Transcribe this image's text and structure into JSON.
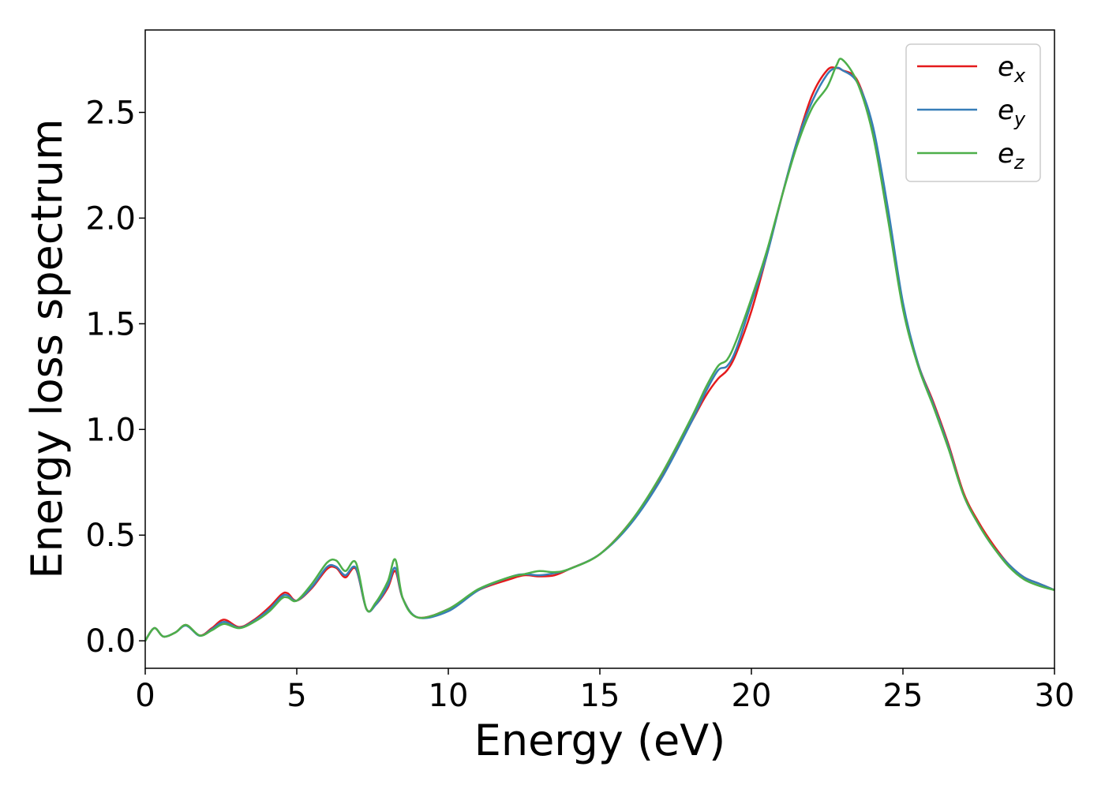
{
  "chart_data": {
    "type": "line",
    "title": "",
    "xlabel": "Energy (eV)",
    "ylabel": "Energy loss spectrum",
    "xlim": [
      0,
      30
    ],
    "ylim": [
      -0.13,
      2.89
    ],
    "xticks": [
      0,
      5,
      10,
      15,
      20,
      25,
      30
    ],
    "xtick_labels": [
      "0",
      "5",
      "10",
      "15",
      "20",
      "25",
      "30"
    ],
    "yticks": [
      0.0,
      0.5,
      1.0,
      1.5,
      2.0,
      2.5
    ],
    "ytick_labels": [
      "0.0",
      "0.5",
      "1.0",
      "1.5",
      "2.0",
      "2.5"
    ],
    "grid": false,
    "legend_position": "top-right",
    "series": [
      {
        "name": "e_x",
        "legend_base": "e",
        "legend_sub": "x",
        "color": "#e41a1c",
        "x": [
          0,
          0.3,
          0.6,
          1.0,
          1.35,
          1.8,
          2.2,
          2.6,
          3.1,
          3.6,
          4.1,
          4.5,
          4.7,
          5.0,
          5.5,
          6.0,
          6.3,
          6.6,
          6.95,
          7.3,
          7.6,
          8.0,
          8.25,
          8.5,
          9.0,
          10.0,
          11.0,
          12.0,
          12.5,
          13.0,
          13.5,
          14.0,
          15.0,
          16.0,
          17.0,
          18.0,
          18.5,
          18.9,
          19.2,
          19.5,
          20.0,
          20.5,
          21.0,
          21.5,
          22.0,
          22.5,
          22.8,
          23.0,
          23.5,
          24.0,
          24.5,
          25.0,
          25.5,
          26.0,
          26.5,
          27.0,
          27.5,
          28.0,
          28.5,
          29.0,
          29.5,
          30.0
        ],
        "values": [
          0.0,
          0.06,
          0.02,
          0.04,
          0.075,
          0.025,
          0.06,
          0.1,
          0.065,
          0.1,
          0.16,
          0.22,
          0.225,
          0.19,
          0.25,
          0.34,
          0.345,
          0.3,
          0.34,
          0.15,
          0.17,
          0.25,
          0.33,
          0.2,
          0.11,
          0.15,
          0.24,
          0.29,
          0.31,
          0.305,
          0.31,
          0.34,
          0.41,
          0.56,
          0.77,
          1.03,
          1.16,
          1.24,
          1.28,
          1.36,
          1.56,
          1.82,
          2.1,
          2.36,
          2.58,
          2.7,
          2.71,
          2.7,
          2.65,
          2.42,
          2.02,
          1.59,
          1.31,
          1.13,
          0.93,
          0.7,
          0.56,
          0.45,
          0.36,
          0.3,
          0.27,
          0.24
        ]
      },
      {
        "name": "e_y",
        "legend_base": "e",
        "legend_sub": "y",
        "color": "#377eb8",
        "x": [
          0,
          0.3,
          0.6,
          1.0,
          1.35,
          1.8,
          2.2,
          2.6,
          3.1,
          3.6,
          4.1,
          4.5,
          4.7,
          5.0,
          5.5,
          6.0,
          6.3,
          6.6,
          6.95,
          7.3,
          7.6,
          8.0,
          8.25,
          8.5,
          9.0,
          10.0,
          11.0,
          12.0,
          12.5,
          13.0,
          13.5,
          14.0,
          15.0,
          16.0,
          17.0,
          18.0,
          18.5,
          18.9,
          19.2,
          19.5,
          20.0,
          20.5,
          21.0,
          21.5,
          22.0,
          22.5,
          22.8,
          23.0,
          23.5,
          24.0,
          24.5,
          25.0,
          25.5,
          26.0,
          26.5,
          27.0,
          27.5,
          28.0,
          28.5,
          29.0,
          29.5,
          30.0
        ],
        "values": [
          0.0,
          0.06,
          0.02,
          0.04,
          0.072,
          0.024,
          0.055,
          0.09,
          0.062,
          0.095,
          0.15,
          0.21,
          0.215,
          0.19,
          0.255,
          0.35,
          0.35,
          0.31,
          0.345,
          0.15,
          0.17,
          0.26,
          0.345,
          0.2,
          0.11,
          0.14,
          0.24,
          0.3,
          0.315,
          0.31,
          0.32,
          0.34,
          0.41,
          0.55,
          0.76,
          1.03,
          1.18,
          1.28,
          1.3,
          1.38,
          1.6,
          1.82,
          2.1,
          2.36,
          2.55,
          2.68,
          2.71,
          2.7,
          2.64,
          2.44,
          2.05,
          1.6,
          1.31,
          1.12,
          0.92,
          0.69,
          0.55,
          0.44,
          0.36,
          0.3,
          0.27,
          0.24
        ]
      },
      {
        "name": "e_z",
        "legend_base": "e",
        "legend_sub": "z",
        "color": "#4daf4a",
        "x": [
          0,
          0.3,
          0.6,
          1.0,
          1.35,
          1.8,
          2.2,
          2.6,
          3.1,
          3.6,
          4.1,
          4.5,
          4.7,
          5.0,
          5.5,
          6.0,
          6.3,
          6.6,
          6.95,
          7.3,
          7.6,
          8.0,
          8.25,
          8.5,
          9.0,
          10.0,
          11.0,
          12.0,
          12.5,
          13.0,
          13.5,
          14.0,
          15.0,
          16.0,
          17.0,
          18.0,
          18.5,
          18.9,
          19.2,
          19.5,
          20.0,
          20.5,
          21.0,
          21.5,
          22.0,
          22.5,
          22.8,
          23.0,
          23.5,
          24.0,
          24.5,
          25.0,
          25.5,
          26.0,
          26.5,
          27.0,
          27.5,
          28.0,
          28.5,
          29.0,
          29.5,
          30.0
        ],
        "values": [
          0.0,
          0.06,
          0.02,
          0.04,
          0.075,
          0.025,
          0.05,
          0.08,
          0.06,
          0.09,
          0.14,
          0.2,
          0.205,
          0.19,
          0.27,
          0.37,
          0.38,
          0.33,
          0.37,
          0.15,
          0.18,
          0.28,
          0.385,
          0.2,
          0.11,
          0.15,
          0.245,
          0.3,
          0.315,
          0.33,
          0.325,
          0.34,
          0.41,
          0.56,
          0.78,
          1.05,
          1.2,
          1.3,
          1.33,
          1.42,
          1.62,
          1.84,
          2.1,
          2.34,
          2.52,
          2.62,
          2.72,
          2.75,
          2.64,
          2.4,
          2.0,
          1.57,
          1.3,
          1.11,
          0.91,
          0.69,
          0.55,
          0.44,
          0.35,
          0.29,
          0.26,
          0.24
        ]
      }
    ]
  }
}
